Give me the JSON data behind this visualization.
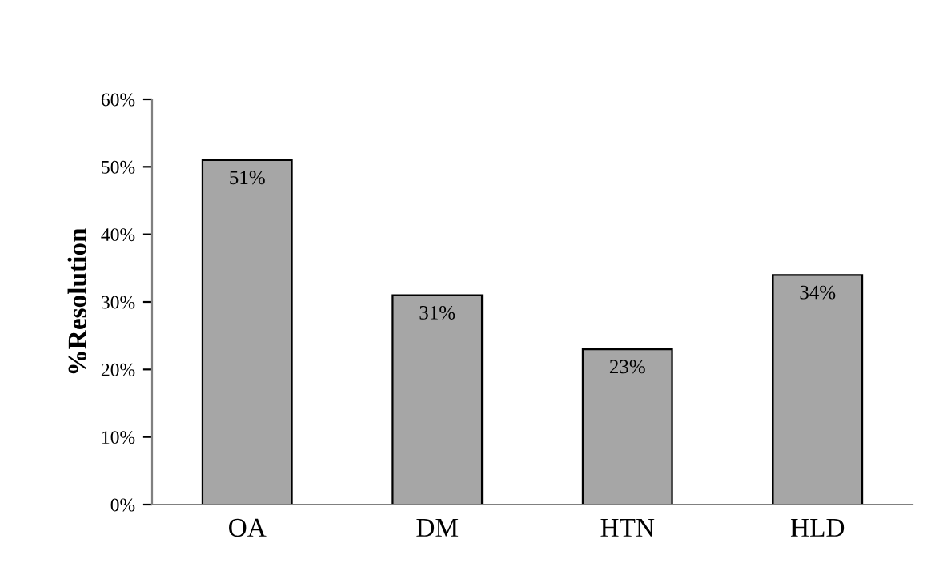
{
  "chart_data": {
    "type": "bar",
    "ylabel": "%Resolution",
    "categories": [
      "OA",
      "DM",
      "HTN",
      "HLD"
    ],
    "values": [
      51,
      31,
      23,
      34
    ],
    "value_labels": [
      "51%",
      "31%",
      "23%",
      "34%"
    ],
    "color": "#a6a6a6",
    "ylim": [
      0,
      60
    ],
    "yticks": [
      {
        "value": 0,
        "label": "0%"
      },
      {
        "value": 10,
        "label": "10%"
      },
      {
        "value": 20,
        "label": "20%"
      },
      {
        "value": 30,
        "label": "30%"
      },
      {
        "value": 40,
        "label": "40%"
      },
      {
        "value": 50,
        "label": "50%"
      },
      {
        "value": 60,
        "label": "60%"
      }
    ],
    "grid": false,
    "legend": false
  }
}
